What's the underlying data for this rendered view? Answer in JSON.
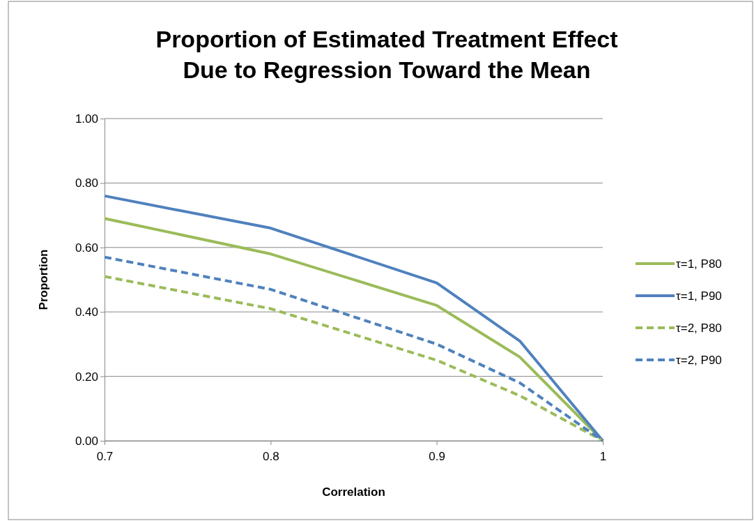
{
  "chart_data": {
    "type": "line",
    "title": "Proportion of Estimated Treatment Effect Due to Regression Toward the Mean",
    "xlabel": "Correlation",
    "ylabel": "Proportion",
    "x": [
      0.7,
      0.8,
      0.9,
      0.95,
      1
    ],
    "xlim": [
      0.7,
      1
    ],
    "xticks": [
      0.7,
      0.8,
      0.9,
      1
    ],
    "ylim": [
      0,
      1
    ],
    "yticks": [
      {
        "value": 0,
        "label": "0.00"
      },
      {
        "value": 0.2,
        "label": "0.20"
      },
      {
        "value": 0.4,
        "label": "0.40"
      },
      {
        "value": 0.6,
        "label": "0.60"
      },
      {
        "value": 0.8,
        "label": "0.80"
      },
      {
        "value": 1,
        "label": "1.00"
      }
    ],
    "grid": "y",
    "legend": "right",
    "marker": "none",
    "series": [
      {
        "name": "τ=1, P80",
        "color": "#9bbb59",
        "line_style": "solid",
        "values": [
          0.69,
          0.58,
          0.42,
          0.26,
          0
        ]
      },
      {
        "name": "τ=1, P90",
        "color": "#4f81bd",
        "line_style": "solid",
        "values": [
          0.76,
          0.66,
          0.49,
          0.31,
          0
        ]
      },
      {
        "name": "τ=2, P80",
        "color": "#9bbb59",
        "line_style": "dashed",
        "values": [
          0.51,
          0.41,
          0.25,
          0.14,
          0
        ]
      },
      {
        "name": "τ=2, P90",
        "color": "#4f81bd",
        "line_style": "dashed",
        "values": [
          0.57,
          0.47,
          0.3,
          0.18,
          0
        ]
      }
    ]
  }
}
